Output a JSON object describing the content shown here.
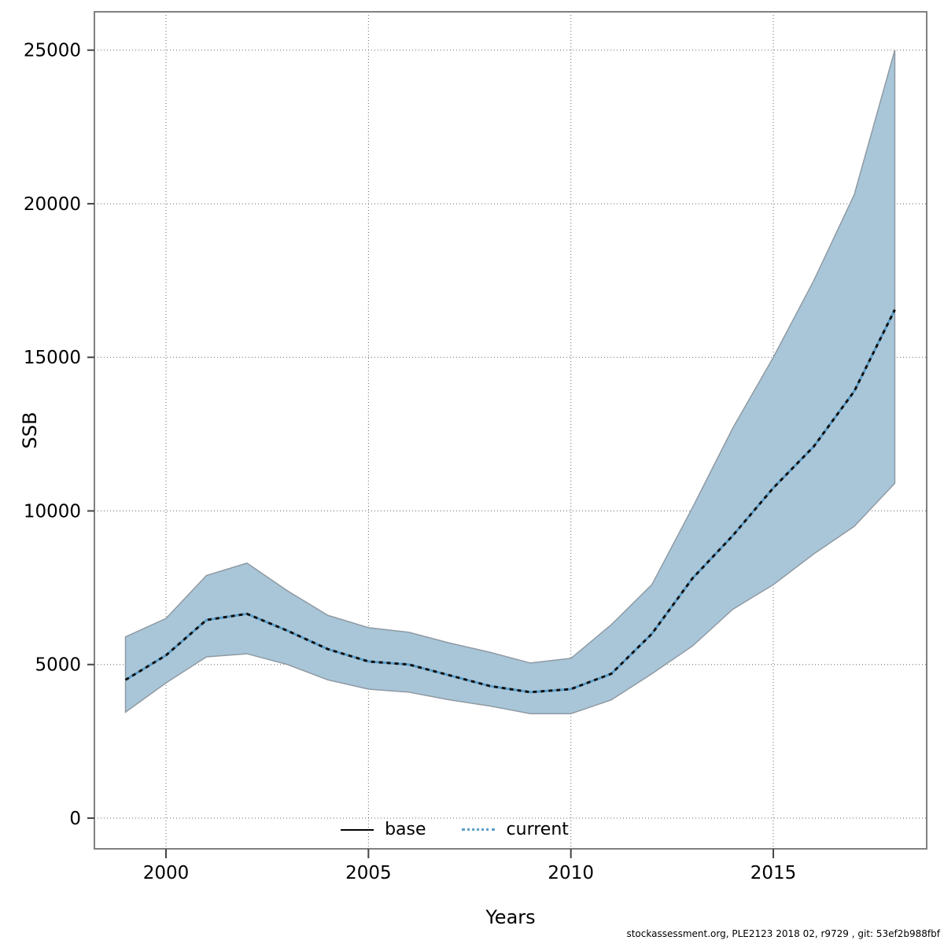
{
  "chart_data": {
    "type": "line",
    "title": "",
    "xlabel": "Years",
    "ylabel": "SSB",
    "grid": true,
    "legend_position": "bottom-center-inside",
    "x_ticks": [
      2000,
      2005,
      2010,
      2015
    ],
    "y_ticks": [
      0,
      5000,
      10000,
      15000,
      20000,
      25000
    ],
    "xlim": [
      1998.2,
      2018.8
    ],
    "ylim": [
      0,
      25000
    ],
    "x": [
      1999,
      2000,
      2001,
      2002,
      2003,
      2004,
      2005,
      2006,
      2007,
      2008,
      2009,
      2010,
      2011,
      2012,
      2013,
      2014,
      2015,
      2016,
      2017,
      2018
    ],
    "series": [
      {
        "name": "base",
        "line_style": "solid",
        "color": "#000000"
      },
      {
        "name": "current",
        "line_style": "dotted",
        "color": "#5b9fc9",
        "overlay_dash_color": "#111111",
        "values": [
          4500,
          5300,
          6450,
          6650,
          6100,
          5500,
          5100,
          5000,
          4650,
          4300,
          4100,
          4200,
          4700,
          6000,
          7800,
          9200,
          10750,
          12100,
          13900,
          16550
        ],
        "band": {
          "lower": [
            3450,
            4400,
            5250,
            5350,
            5000,
            4500,
            4200,
            4100,
            3850,
            3650,
            3400,
            3400,
            3850,
            4700,
            5600,
            6800,
            7600,
            8600,
            9500,
            10900
          ],
          "upper": [
            5900,
            6500,
            7900,
            8300,
            7400,
            6600,
            6200,
            6050,
            5700,
            5400,
            5050,
            5200,
            6300,
            7600,
            10100,
            12700,
            15000,
            17500,
            20300,
            25000
          ],
          "fill": "#a9c6d9",
          "stroke": "#8f9aa3"
        }
      }
    ],
    "grid_color": "#666666",
    "box_color": "#808080",
    "tick_color": "#444444",
    "text_color": "#000000"
  },
  "footer": {
    "text": "stockassessment.org, PLE2123 2018 02, r9729 , git: 53ef2b988fbf"
  }
}
